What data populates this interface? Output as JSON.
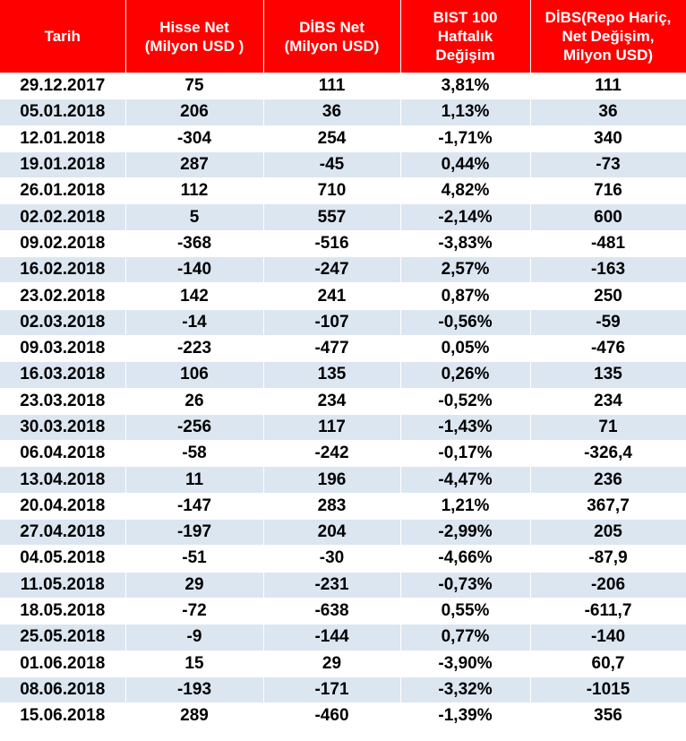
{
  "table": {
    "headers": [
      "Tarih",
      "Hisse Net\n(Milyon USD )",
      "DİBS Net\n(Milyon USD)",
      "BIST 100\nHaftalık\nDeğişim",
      "DİBS(Repo Hariç,\nNet Değişim,\nMilyon USD)"
    ],
    "rows": [
      [
        "29.12.2017",
        "75",
        "111",
        "3,81%",
        "111"
      ],
      [
        "05.01.2018",
        "206",
        "36",
        "1,13%",
        "36"
      ],
      [
        "12.01.2018",
        "-304",
        "254",
        "-1,71%",
        "340"
      ],
      [
        "19.01.2018",
        "287",
        "-45",
        "0,44%",
        "-73"
      ],
      [
        "26.01.2018",
        "112",
        "710",
        "4,82%",
        "716"
      ],
      [
        "02.02.2018",
        "5",
        "557",
        "-2,14%",
        "600"
      ],
      [
        "09.02.2018",
        "-368",
        "-516",
        "-3,83%",
        "-481"
      ],
      [
        "16.02.2018",
        "-140",
        "-247",
        "2,57%",
        "-163"
      ],
      [
        "23.02.2018",
        "142",
        "241",
        "0,87%",
        "250"
      ],
      [
        "02.03.2018",
        "-14",
        "-107",
        "-0,56%",
        "-59"
      ],
      [
        "09.03.2018",
        "-223",
        "-477",
        "0,05%",
        "-476"
      ],
      [
        "16.03.2018",
        "106",
        "135",
        "0,26%",
        "135"
      ],
      [
        "23.03.2018",
        "26",
        "234",
        "-0,52%",
        "234"
      ],
      [
        "30.03.2018",
        "-256",
        "117",
        "-1,43%",
        "71"
      ],
      [
        "06.04.2018",
        "-58",
        "-242",
        "-0,17%",
        "-326,4"
      ],
      [
        "13.04.2018",
        "11",
        "196",
        "-4,47%",
        "236"
      ],
      [
        "20.04.2018",
        "-147",
        "283",
        "1,21%",
        "367,7"
      ],
      [
        "27.04.2018",
        "-197",
        "204",
        "-2,99%",
        "205"
      ],
      [
        "04.05.2018",
        "-51",
        "-30",
        "-4,66%",
        "-87,9"
      ],
      [
        "11.05.2018",
        "29",
        "-231",
        "-0,73%",
        "-206"
      ],
      [
        "18.05.2018",
        "-72",
        "-638",
        "0,55%",
        "-611,7"
      ],
      [
        "25.05.2018",
        "-9",
        "-144",
        "0,77%",
        "-140"
      ],
      [
        "01.06.2018",
        "15",
        "29",
        "-3,90%",
        "60,7"
      ],
      [
        "08.06.2018",
        "-193",
        "-171",
        "-3,32%",
        "-1015"
      ],
      [
        "15.06.2018",
        "289",
        "-460",
        "-1,39%",
        "356"
      ]
    ]
  },
  "colors": {
    "header_bg": "#ff0000",
    "header_text": "#ffffff",
    "row_alt_bg": "#dce6f1",
    "row_bg": "#ffffff"
  }
}
